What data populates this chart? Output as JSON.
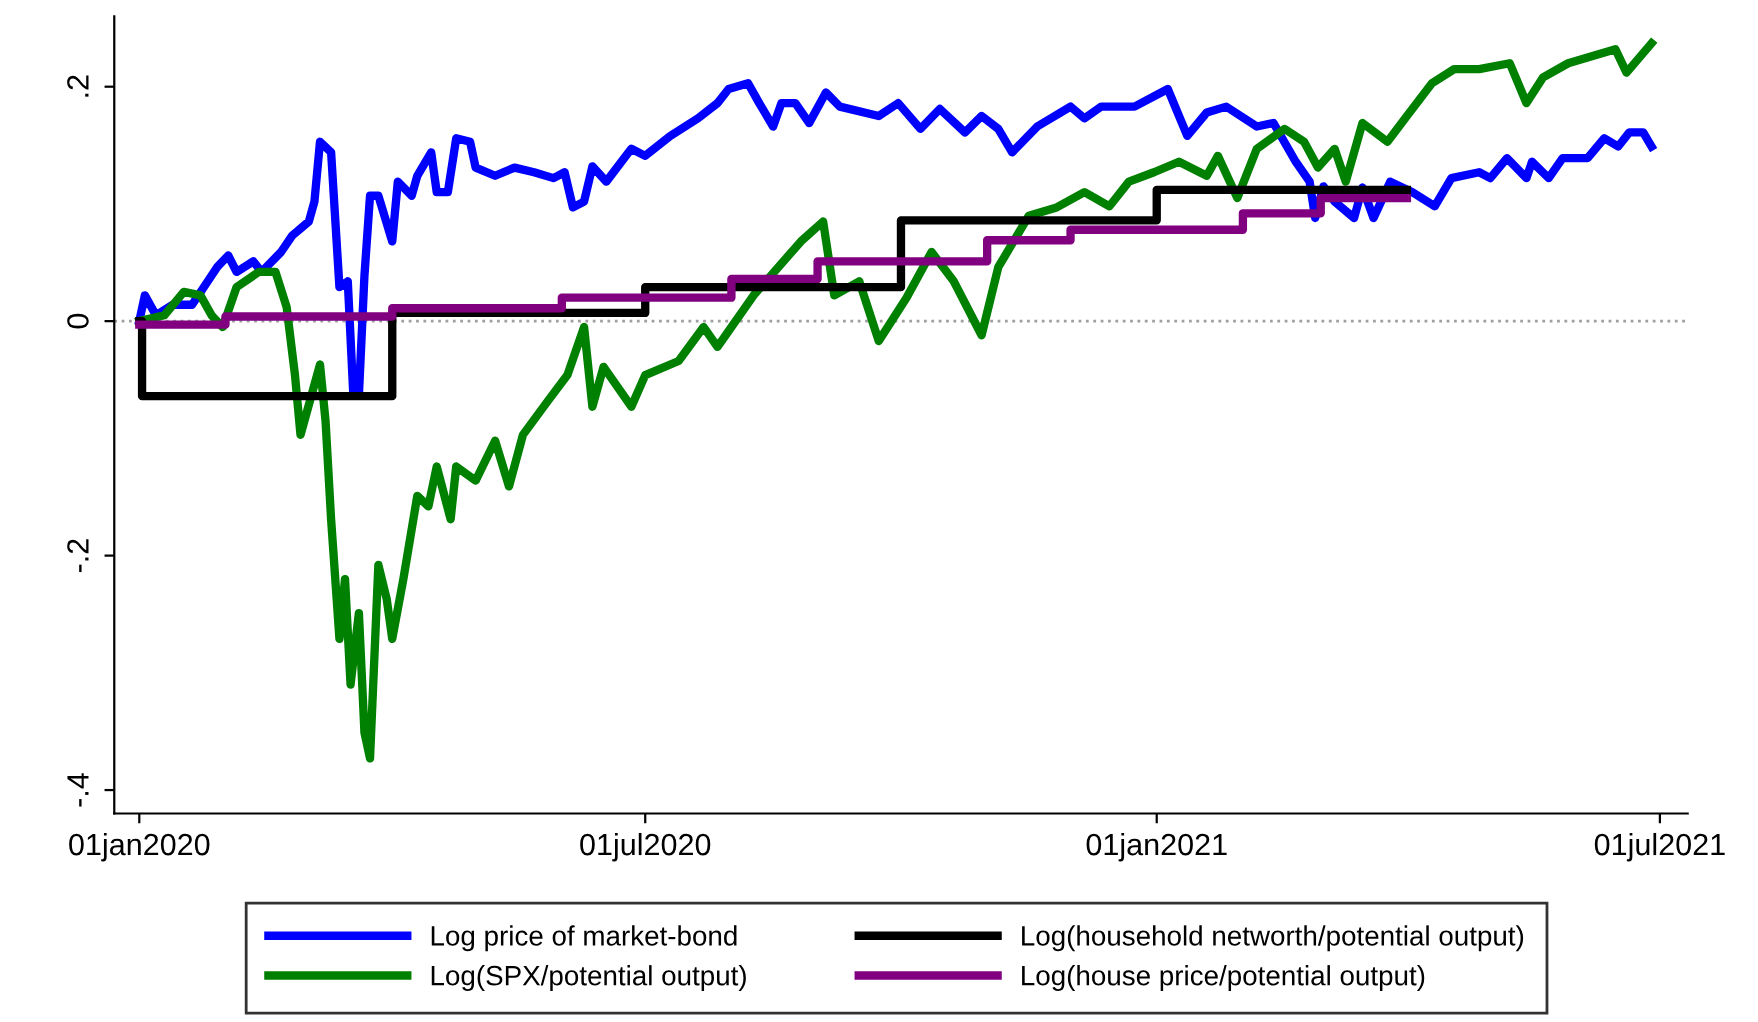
{
  "chart_data": {
    "type": "line",
    "xlim": [
      "2019-12-23",
      "2021-07-11"
    ],
    "xticks": [
      {
        "value": "2020-01-01",
        "label": "01jan2020"
      },
      {
        "value": "2020-07-01",
        "label": "01jul2020"
      },
      {
        "value": "2021-01-01",
        "label": "01jan2021"
      },
      {
        "value": "2021-07-01",
        "label": "01jul2021"
      }
    ],
    "ylim": [
      -0.42,
      0.26
    ],
    "yticks": [
      {
        "value": -0.4,
        "label": "-.4"
      },
      {
        "value": -0.2,
        "label": "-.2"
      },
      {
        "value": 0,
        "label": "0"
      },
      {
        "value": 0.2,
        "label": ".2"
      }
    ],
    "grid": false,
    "legend": "bottom",
    "line_style": "solid",
    "marker": "none",
    "ref_lines": [
      {
        "axis": "y",
        "value": 0,
        "label": null,
        "color": "#a0a0a0",
        "line_style": "dotted"
      }
    ],
    "series": [
      {
        "name": "Log price of market-bond",
        "color": "#0000ff",
        "x": [
          "2020-01-01",
          "2020-01-03",
          "2020-01-07",
          "2020-01-13",
          "2020-01-20",
          "2020-01-29",
          "2020-02-02",
          "2020-02-05",
          "2020-02-11",
          "2020-02-14",
          "2020-02-21",
          "2020-02-25",
          "2020-03-02",
          "2020-03-04",
          "2020-03-06",
          "2020-03-10",
          "2020-03-13",
          "2020-03-16",
          "2020-03-18",
          "2020-03-20",
          "2020-03-22",
          "2020-03-24",
          "2020-03-27",
          "2020-04-01",
          "2020-04-03",
          "2020-04-08",
          "2020-04-10",
          "2020-04-15",
          "2020-04-17",
          "2020-04-21",
          "2020-04-24",
          "2020-04-29",
          "2020-05-01",
          "2020-05-08",
          "2020-05-15",
          "2020-05-22",
          "2020-05-29",
          "2020-06-02",
          "2020-06-05",
          "2020-06-09",
          "2020-06-12",
          "2020-06-17",
          "2020-06-26",
          "2020-07-01",
          "2020-07-10",
          "2020-07-20",
          "2020-07-27",
          "2020-07-31",
          "2020-08-07",
          "2020-08-11",
          "2020-08-16",
          "2020-08-19",
          "2020-08-24",
          "2020-08-29",
          "2020-09-04",
          "2020-09-09",
          "2020-09-23",
          "2020-09-30",
          "2020-10-08",
          "2020-10-15",
          "2020-10-24",
          "2020-10-30",
          "2020-11-05",
          "2020-11-10",
          "2020-11-19",
          "2020-12-01",
          "2020-12-06",
          "2020-12-12",
          "2020-12-24",
          "2021-01-05",
          "2021-01-12",
          "2021-01-19",
          "2021-01-26",
          "2021-02-06",
          "2021-02-12",
          "2021-02-20",
          "2021-02-25",
          "2021-02-27",
          "2021-03-02",
          "2021-03-06",
          "2021-03-13",
          "2021-03-16",
          "2021-03-20",
          "2021-03-26",
          "2021-04-03",
          "2021-04-11",
          "2021-04-17",
          "2021-04-27",
          "2021-05-01",
          "2021-05-07",
          "2021-05-14",
          "2021-05-16",
          "2021-05-22",
          "2021-05-27",
          "2021-06-05",
          "2021-06-11",
          "2021-06-16",
          "2021-06-20",
          "2021-06-25",
          "2021-06-28"
        ],
        "values": [
          0,
          0.022,
          0.005,
          0.014,
          0.014,
          0.046,
          0.056,
          0.042,
          0.051,
          0.042,
          0.059,
          0.073,
          0.085,
          0.102,
          0.153,
          0.144,
          0.029,
          0.034,
          -0.063,
          -0.063,
          0.039,
          0.107,
          0.107,
          0.068,
          0.119,
          0.107,
          0.124,
          0.144,
          0.11,
          0.11,
          0.156,
          0.153,
          0.131,
          0.124,
          0.131,
          0.127,
          0.122,
          0.127,
          0.097,
          0.102,
          0.132,
          0.119,
          0.147,
          0.141,
          0.158,
          0.173,
          0.186,
          0.198,
          0.203,
          0.186,
          0.166,
          0.186,
          0.186,
          0.169,
          0.195,
          0.183,
          0.175,
          0.186,
          0.164,
          0.181,
          0.161,
          0.175,
          0.164,
          0.144,
          0.166,
          0.183,
          0.173,
          0.183,
          0.183,
          0.198,
          0.158,
          0.178,
          0.183,
          0.166,
          0.169,
          0.136,
          0.119,
          0.088,
          0.115,
          0.102,
          0.088,
          0.114,
          0.088,
          0.119,
          0.11,
          0.098,
          0.122,
          0.127,
          0.122,
          0.139,
          0.122,
          0.136,
          0.122,
          0.139,
          0.139,
          0.156,
          0.149,
          0.161,
          0.161,
          0.149
        ]
      },
      {
        "name": "Log(SPX/potential output)",
        "color": "#008000",
        "x": [
          "2020-01-01",
          "2020-01-10",
          "2020-01-17",
          "2020-01-23",
          "2020-01-27",
          "2020-01-31",
          "2020-02-05",
          "2020-02-13",
          "2020-02-19",
          "2020-02-23",
          "2020-02-26",
          "2020-02-28",
          "2020-03-06",
          "2020-03-08",
          "2020-03-10",
          "2020-03-13",
          "2020-03-15",
          "2020-03-17",
          "2020-03-20",
          "2020-03-22",
          "2020-03-24",
          "2020-03-27",
          "2020-03-30",
          "2020-04-01",
          "2020-04-05",
          "2020-04-10",
          "2020-04-14",
          "2020-04-17",
          "2020-04-22",
          "2020-04-24",
          "2020-05-01",
          "2020-05-08",
          "2020-05-13",
          "2020-05-18",
          "2020-05-27",
          "2020-06-03",
          "2020-06-09",
          "2020-06-12",
          "2020-06-16",
          "2020-06-26",
          "2020-07-01",
          "2020-07-13",
          "2020-07-22",
          "2020-07-27",
          "2020-08-09",
          "2020-08-26",
          "2020-09-03",
          "2020-09-07",
          "2020-09-16",
          "2020-09-23",
          "2020-10-03",
          "2020-10-12",
          "2020-10-20",
          "2020-10-30",
          "2020-11-05",
          "2020-11-16",
          "2020-11-26",
          "2020-12-06",
          "2020-12-15",
          "2020-12-22",
          "2020-12-31",
          "2021-01-09",
          "2021-01-19",
          "2021-01-23",
          "2021-01-30",
          "2021-02-06",
          "2021-02-16",
          "2021-02-23",
          "2021-02-28",
          "2021-03-06",
          "2021-03-10",
          "2021-03-16",
          "2021-03-25",
          "2021-04-01",
          "2021-04-10",
          "2021-04-18",
          "2021-04-27",
          "2021-05-08",
          "2021-05-14",
          "2021-05-20",
          "2021-05-29",
          "2021-06-15",
          "2021-06-19",
          "2021-06-28"
        ],
        "values": [
          0,
          0.005,
          0.025,
          0.022,
          0.005,
          -0.005,
          0.029,
          0.042,
          0.042,
          0.012,
          -0.046,
          -0.097,
          -0.037,
          -0.085,
          -0.169,
          -0.271,
          -0.22,
          -0.31,
          -0.249,
          -0.351,
          -0.373,
          -0.208,
          -0.237,
          -0.271,
          -0.22,
          -0.149,
          -0.158,
          -0.124,
          -0.169,
          -0.124,
          -0.136,
          -0.102,
          -0.141,
          -0.097,
          -0.068,
          -0.046,
          -0.005,
          -0.073,
          -0.039,
          -0.073,
          -0.046,
          -0.034,
          -0.005,
          -0.022,
          0.022,
          0.068,
          0.085,
          0.022,
          0.034,
          -0.017,
          0.02,
          0.059,
          0.034,
          -0.012,
          0.046,
          0.09,
          0.097,
          0.11,
          0.098,
          0.119,
          0.127,
          0.136,
          0.124,
          0.141,
          0.105,
          0.147,
          0.164,
          0.153,
          0.131,
          0.147,
          0.119,
          0.169,
          0.153,
          0.175,
          0.203,
          0.215,
          0.215,
          0.22,
          0.186,
          0.208,
          0.22,
          0.232,
          0.212,
          0.237
        ]
      },
      {
        "name": "Log(household networth/potential output)",
        "color": "#000000",
        "type": "step",
        "x": [
          "2020-01-01",
          "2020-01-02",
          "2020-04-01",
          "2020-07-01",
          "2020-10-01",
          "2021-01-01",
          "2021-04-01"
        ],
        "values": [
          0,
          -0.064,
          0.007,
          0.029,
          0.086,
          0.112,
          0.112
        ]
      },
      {
        "name": "Log(house price/potential output)",
        "color": "#800080",
        "type": "step",
        "x": [
          "2020-01-01",
          "2020-02-01",
          "2020-04-01",
          "2020-06-01",
          "2020-08-01",
          "2020-09-01",
          "2020-11-01",
          "2020-12-01",
          "2021-02-01",
          "2021-03-01",
          "2021-04-01"
        ],
        "values": [
          -0.003,
          0.004,
          0.011,
          0.02,
          0.036,
          0.051,
          0.069,
          0.078,
          0.092,
          0.105,
          0.105
        ]
      }
    ]
  }
}
